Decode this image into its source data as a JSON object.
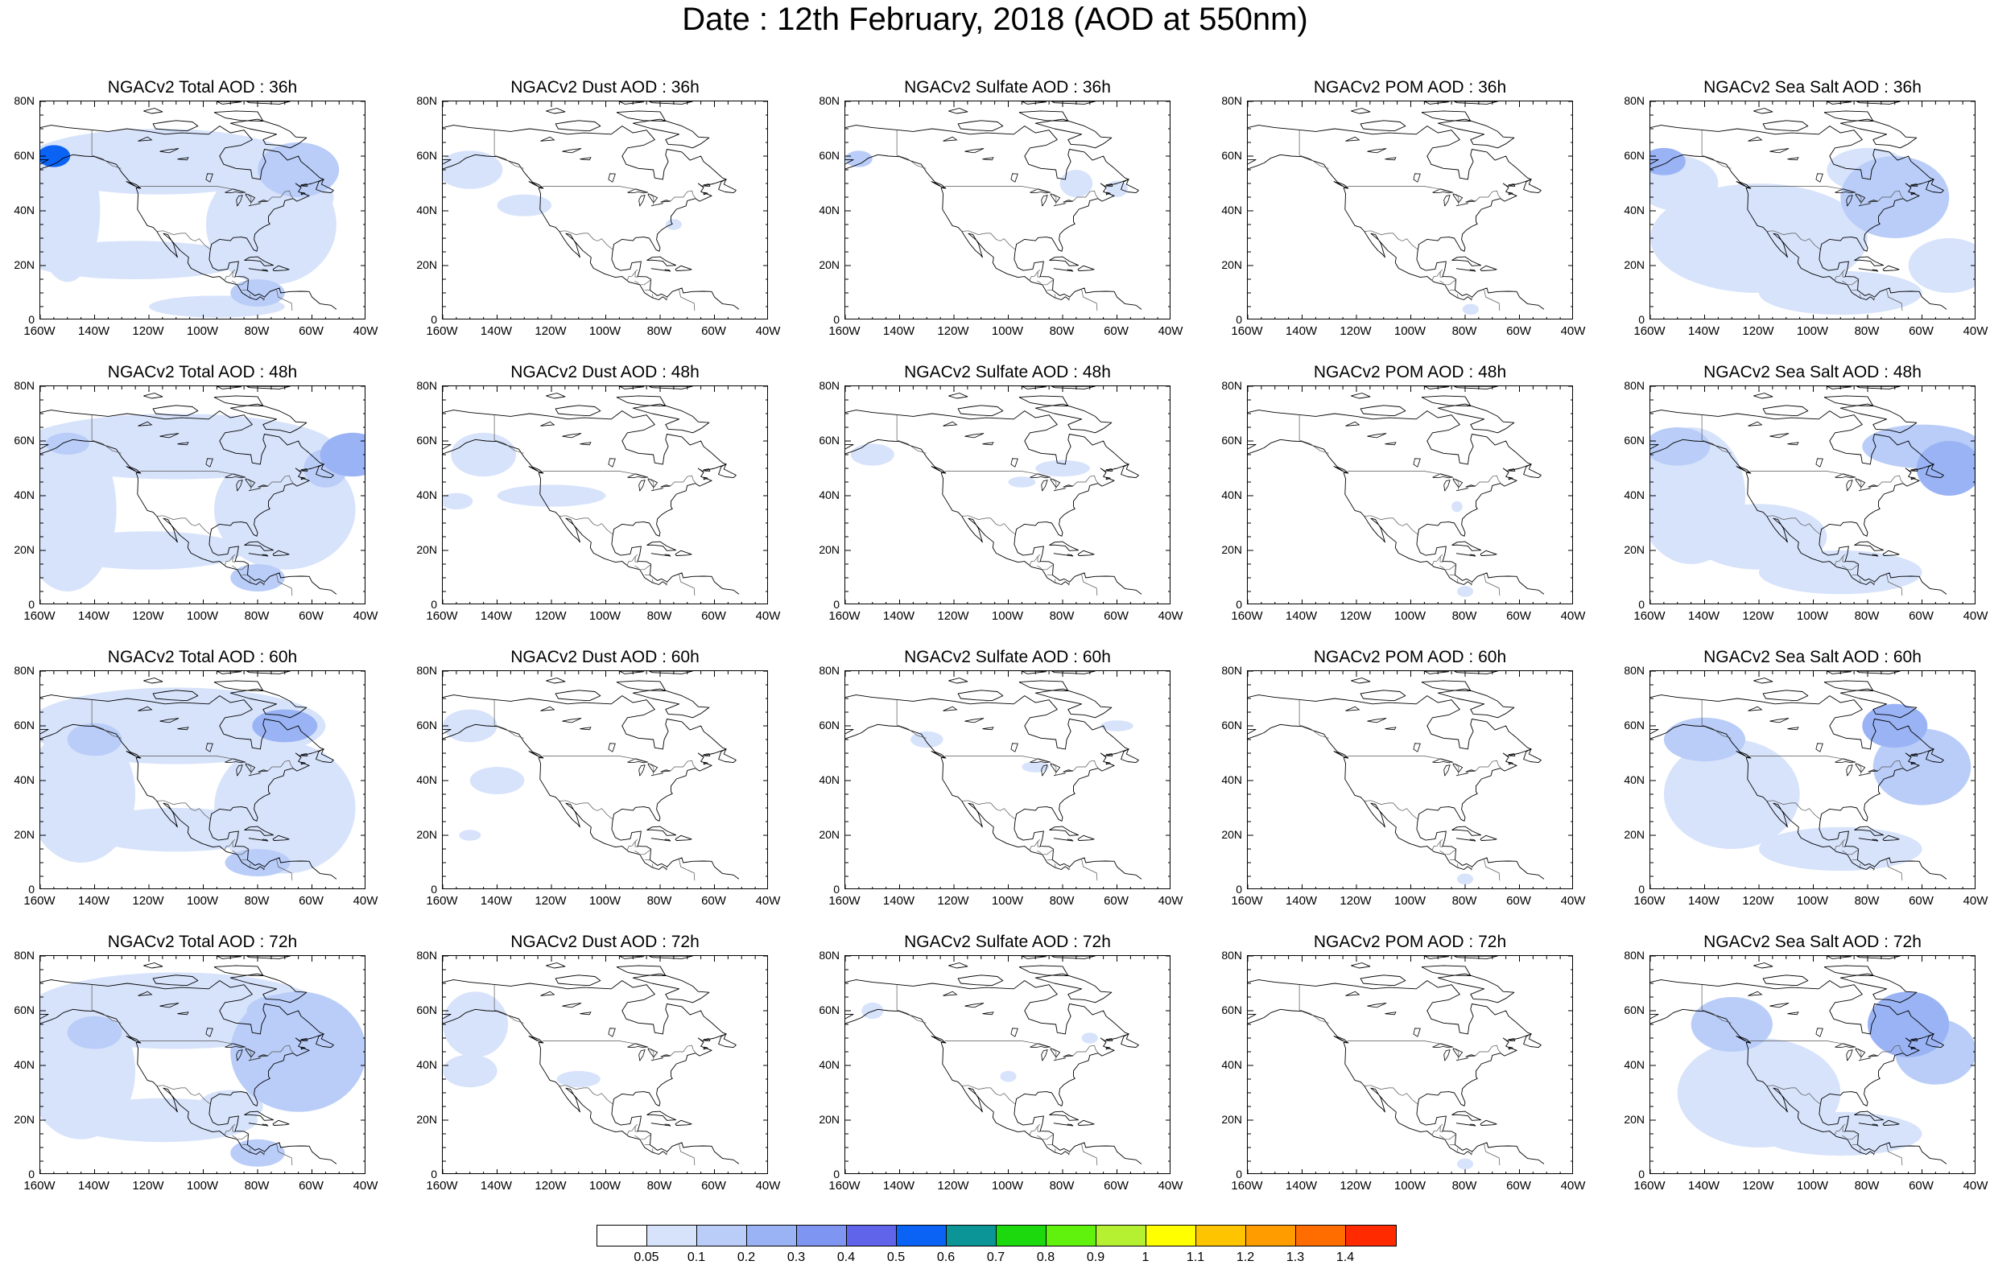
{
  "title": "Date : 12th February, 2018 (AOD at 550nm)",
  "panel_titles": [
    [
      "NGACv2 Total AOD : 36h",
      "NGACv2 Dust AOD : 36h",
      "NGACv2 Sulfate AOD : 36h",
      "NGACv2 POM AOD : 36h",
      "NGACv2 Sea Salt AOD : 36h"
    ],
    [
      "NGACv2 Total AOD : 48h",
      "NGACv2 Dust AOD : 48h",
      "NGACv2 Sulfate AOD : 48h",
      "NGACv2 POM AOD : 48h",
      "NGACv2 Sea Salt AOD : 48h"
    ],
    [
      "NGACv2 Total AOD : 60h",
      "NGACv2 Dust AOD : 60h",
      "NGACv2 Sulfate AOD : 60h",
      "NGACv2 POM AOD : 60h",
      "NGACv2 Sea Salt AOD : 60h"
    ],
    [
      "NGACv2 Total AOD : 72h",
      "NGACv2 Dust AOD : 72h",
      "NGACv2 Sulfate AOD : 72h",
      "NGACv2 POM AOD : 72h",
      "NGACv2 Sea Salt  AOD : 72h"
    ]
  ],
  "map": {
    "lon_range": [
      -160,
      -40
    ],
    "lat_range": [
      0,
      80
    ],
    "lat_labels": [
      "80N",
      "60N",
      "40N",
      "20N",
      "0"
    ],
    "lon_labels": [
      "160W",
      "140W",
      "120W",
      "100W",
      "80W",
      "60W",
      "40W"
    ]
  },
  "colorbar": {
    "colors": [
      "#ffffff",
      "#d7e3fb",
      "#b9cdf8",
      "#9ab3f5",
      "#7f95f2",
      "#5f64ea",
      "#0a63f4",
      "#0b9597",
      "#1bd90d",
      "#60f20d",
      "#b5f031",
      "#ffff00",
      "#ffc400",
      "#ff9d00",
      "#ff6d00",
      "#ff2a00"
    ],
    "labels": [
      "0.05",
      "0.1",
      "0.2",
      "0.3",
      "0.4",
      "0.5",
      "0.6",
      "0.7",
      "0.8",
      "0.9",
      "1",
      "1.1",
      "1.2",
      "1.3",
      "1.4"
    ]
  }
}
